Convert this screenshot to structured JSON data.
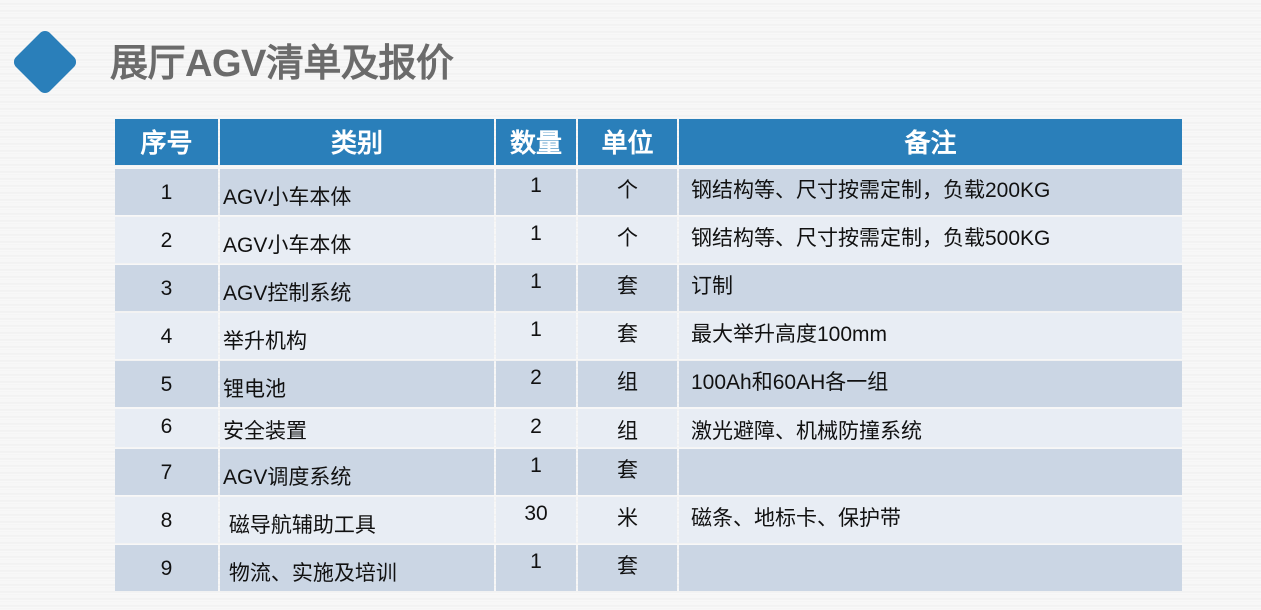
{
  "title": "展厅AGV清单及报价",
  "colors": {
    "accent": "#2a7fba",
    "row_odd": "#cbd6e4",
    "row_even": "#e8edf4"
  },
  "table": {
    "headers": [
      "序号",
      "类别",
      "数量",
      "单位",
      "备注"
    ],
    "rows": [
      [
        "1",
        "AGV小车本体",
        "1",
        "个",
        "钢结构等、尺寸按需定制，负载200KG"
      ],
      [
        "2",
        "AGV小车本体",
        "1",
        "个",
        "钢结构等、尺寸按需定制，负载500KG"
      ],
      [
        "3",
        "AGV控制系统",
        "1",
        "套",
        "订制"
      ],
      [
        "4",
        "举升机构",
        "1",
        "套",
        "最大举升高度100mm"
      ],
      [
        "5",
        "锂电池",
        "2",
        "组",
        "100Ah和60AH各一组"
      ],
      [
        "6",
        "安全装置",
        "2",
        "组",
        "激光避障、机械防撞系统"
      ],
      [
        "7",
        "AGV调度系统",
        "1",
        "套",
        ""
      ],
      [
        "8",
        " 磁导航辅助工具",
        "30",
        "米",
        "磁条、地标卡、保护带"
      ],
      [
        "9",
        " 物流、实施及培训",
        "1",
        "套",
        ""
      ]
    ]
  }
}
